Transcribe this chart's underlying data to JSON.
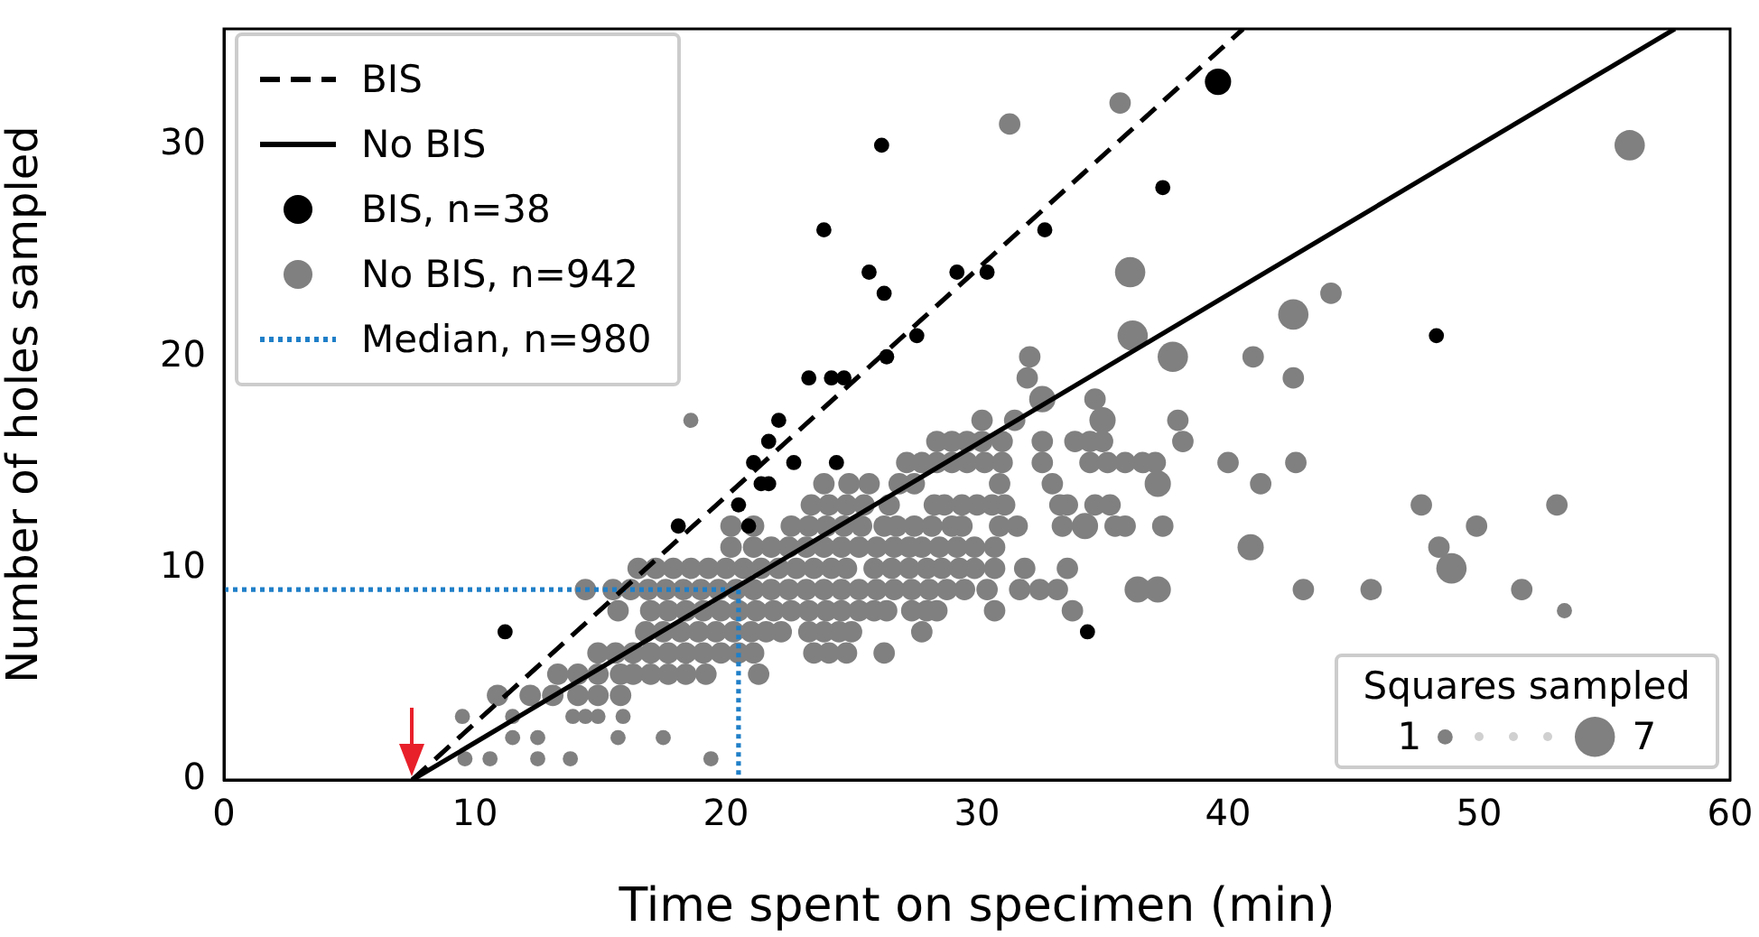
{
  "chart_data": {
    "type": "bubble",
    "xlabel": "Time spent on specimen (min)",
    "ylabel": "Number of holes sampled",
    "xlim": [
      0,
      60
    ],
    "ylim": [
      0,
      35.5
    ],
    "xticks": [
      0,
      10,
      20,
      30,
      40,
      50,
      60
    ],
    "yticks": [
      0,
      10,
      20,
      30
    ],
    "grid": false,
    "legend": "top left",
    "legend_title": "Squares sampled",
    "size_legend": [
      1,
      7
    ],
    "series": [
      {
        "name": "BIS",
        "type": "line",
        "color": "#000000",
        "line_style": "dashed",
        "marker": "none",
        "x": [
          7.5,
          40.6
        ],
        "values": [
          0,
          35.5
        ]
      },
      {
        "name": "No BIS",
        "type": "line",
        "color": "#000000",
        "line_style": "solid",
        "marker": "none",
        "x": [
          7.5,
          57.8
        ],
        "values": [
          0,
          35.5
        ]
      },
      {
        "name": "BIS, n=38",
        "type": "bubble",
        "color": "#000000",
        "marker": "circle",
        "x": [
          11.2,
          18.1,
          20.5,
          20.9,
          21.4,
          21.7,
          21.1,
          21.7,
          22.1,
          22.7,
          23.3,
          24.2,
          24.7,
          24.4,
          26.4,
          27.6,
          23.9,
          25.7,
          26.3,
          26.2,
          29.2,
          30.4,
          32.7,
          37.4,
          39.6,
          34.4,
          48.3
        ],
        "values": [
          7,
          12,
          13,
          12,
          14,
          14,
          15,
          16,
          17,
          15,
          19,
          19,
          19,
          15,
          20,
          21,
          26,
          24,
          23,
          30,
          24,
          24,
          26,
          28,
          33,
          7,
          21
        ],
        "sizes": [
          1,
          1,
          1,
          1,
          1,
          1,
          1,
          1,
          1,
          1,
          1,
          1,
          1,
          1,
          1,
          1,
          1,
          1,
          1,
          1,
          1,
          1,
          1,
          1,
          3,
          1,
          1
        ]
      },
      {
        "name": "No BIS, n=942",
        "type": "bubble",
        "color": "#808080",
        "marker": "circle",
        "x": [
          9.6,
          10.6,
          12.5,
          13.8,
          19.4,
          11.5,
          12.5,
          15.7,
          17.5,
          9.5,
          11.5,
          13.9,
          14.4,
          14.9,
          15.9,
          10.9,
          12.2,
          13.1,
          14.1,
          14.9,
          15.8,
          13.3,
          14.1,
          14.9,
          15.8,
          16.3,
          17.0,
          17.7,
          18.4,
          19.2,
          21.3,
          14.9,
          15.6,
          16.3,
          17.0,
          17.7,
          18.4,
          19.1,
          19.8,
          20.5,
          21.1,
          23.5,
          24.1,
          24.8,
          26.3,
          16.8,
          17.5,
          18.2,
          18.9,
          19.6,
          20.3,
          21.0,
          21.6,
          22.2,
          23.3,
          23.9,
          24.5,
          25.0,
          27.8,
          15.7,
          17.0,
          17.7,
          18.4,
          19.1,
          19.8,
          20.5,
          21.2,
          21.9,
          22.6,
          23.3,
          24.0,
          24.6,
          25.3,
          25.9,
          26.4,
          27.4,
          28.0,
          28.4,
          30.7,
          33.8,
          53.4,
          14.4,
          15.5,
          16.2,
          16.9,
          17.6,
          18.3,
          19.0,
          19.7,
          20.4,
          21.1,
          21.8,
          22.5,
          23.2,
          23.9,
          24.6,
          25.3,
          26.0,
          26.7,
          27.4,
          28.1,
          28.8,
          29.5,
          30.4,
          31.7,
          32.5,
          33.2,
          36.4,
          37.2,
          43.0,
          45.7,
          51.7,
          16.5,
          17.2,
          17.9,
          18.6,
          19.3,
          20.0,
          20.7,
          21.4,
          22.1,
          22.8,
          23.5,
          24.2,
          24.8,
          25.9,
          26.6,
          27.3,
          28.0,
          28.6,
          29.3,
          29.9,
          30.7,
          31.9,
          33.6,
          48.9,
          20.2,
          21.1,
          21.8,
          22.5,
          23.2,
          23.9,
          24.6,
          25.3,
          26.0,
          26.7,
          27.3,
          27.8,
          28.5,
          29.2,
          29.9,
          30.7,
          40.9,
          48.4,
          20.2,
          21.1,
          22.6,
          23.3,
          24.0,
          24.7,
          25.4,
          26.3,
          26.8,
          27.5,
          28.2,
          29.0,
          29.4,
          30.9,
          31.6,
          33.4,
          34.3,
          35.5,
          35.9,
          37.4,
          49.9,
          23.4,
          24.1,
          24.8,
          25.5,
          26.5,
          28.3,
          28.7,
          29.4,
          30.0,
          30.6,
          31.1,
          33.3,
          33.6,
          34.7,
          35.3,
          47.7,
          53.1,
          23.9,
          24.9,
          25.7,
          26.9,
          27.5,
          30.9,
          33.0,
          37.2,
          41.3,
          27.2,
          27.8,
          28.4,
          29.0,
          29.6,
          30.3,
          31.0,
          32.6,
          34.5,
          35.2,
          35.9,
          36.6,
          37.1,
          40.0,
          42.7,
          28.4,
          29.0,
          29.6,
          30.2,
          31.0,
          32.6,
          33.9,
          34.5,
          35.0,
          38.2,
          18.6,
          30.2,
          31.5,
          35.0,
          38.0,
          32.6,
          34.7,
          32.0,
          42.6,
          32.1,
          37.8,
          41.0,
          36.2,
          42.6,
          44.1,
          36.1,
          56.0,
          31.3,
          35.7
        ],
        "values": [
          1,
          1,
          1,
          1,
          1,
          2,
          2,
          2,
          2,
          3,
          3,
          3,
          3,
          3,
          3,
          4,
          4,
          4,
          4,
          4,
          4,
          5,
          5,
          5,
          5,
          5,
          5,
          5,
          5,
          5,
          5,
          6,
          6,
          6,
          6,
          6,
          6,
          6,
          6,
          6,
          6,
          6,
          6,
          6,
          6,
          7,
          7,
          7,
          7,
          7,
          7,
          7,
          7,
          7,
          7,
          7,
          7,
          7,
          7,
          8,
          8,
          8,
          8,
          8,
          8,
          8,
          8,
          8,
          8,
          8,
          8,
          8,
          8,
          8,
          8,
          8,
          8,
          8,
          8,
          8,
          8,
          9,
          9,
          9,
          9,
          9,
          9,
          9,
          9,
          9,
          9,
          9,
          9,
          9,
          9,
          9,
          9,
          9,
          9,
          9,
          9,
          9,
          9,
          9,
          9,
          9,
          9,
          9,
          9,
          9,
          9,
          9,
          10,
          10,
          10,
          10,
          10,
          10,
          10,
          10,
          10,
          10,
          10,
          10,
          10,
          10,
          10,
          10,
          10,
          10,
          10,
          10,
          10,
          10,
          10,
          10,
          11,
          11,
          11,
          11,
          11,
          11,
          11,
          11,
          11,
          11,
          11,
          11,
          11,
          11,
          11,
          11,
          11,
          11,
          12,
          12,
          12,
          12,
          12,
          12,
          12,
          12,
          12,
          12,
          12,
          12,
          12,
          12,
          12,
          12,
          12,
          12,
          12,
          12,
          12,
          13,
          13,
          13,
          13,
          13,
          13,
          13,
          13,
          13,
          13,
          13,
          13,
          13,
          13,
          13,
          13,
          13,
          14,
          14,
          14,
          14,
          14,
          14,
          14,
          14,
          14,
          15,
          15,
          15,
          15,
          15,
          15,
          15,
          15,
          15,
          15,
          15,
          15,
          15,
          15,
          15,
          16,
          16,
          16,
          16,
          16,
          16,
          16,
          16,
          16,
          16,
          17,
          17,
          17,
          17,
          17,
          18,
          18,
          19,
          19,
          20,
          20,
          20,
          21,
          22,
          23,
          24,
          30,
          31,
          32
        ],
        "sizes": [
          1,
          1,
          1,
          1,
          1,
          1,
          1,
          1,
          1,
          1,
          1,
          1,
          1,
          1,
          1,
          2,
          2,
          2,
          2,
          2,
          2,
          2,
          2,
          2,
          2,
          2,
          2,
          2,
          2,
          2,
          2,
          2,
          2,
          2,
          2,
          2,
          2,
          2,
          2,
          2,
          2,
          2,
          2,
          2,
          2,
          2,
          2,
          2,
          2,
          2,
          2,
          2,
          2,
          2,
          2,
          2,
          2,
          2,
          2,
          2,
          2,
          2,
          2,
          2,
          2,
          2,
          2,
          2,
          2,
          2,
          2,
          2,
          2,
          2,
          2,
          2,
          2,
          2,
          2,
          2,
          1,
          2,
          2,
          2,
          2,
          2,
          2,
          2,
          2,
          2,
          2,
          2,
          2,
          2,
          2,
          2,
          2,
          2,
          2,
          2,
          2,
          2,
          2,
          2,
          2,
          2,
          2,
          3,
          3,
          2,
          2,
          2,
          2,
          2,
          2,
          2,
          2,
          2,
          2,
          2,
          2,
          2,
          2,
          2,
          2,
          2,
          2,
          2,
          2,
          2,
          2,
          2,
          2,
          2,
          2,
          4,
          2,
          2,
          2,
          2,
          2,
          2,
          2,
          2,
          2,
          2,
          2,
          2,
          2,
          2,
          2,
          2,
          3,
          2,
          2,
          2,
          2,
          2,
          2,
          2,
          2,
          2,
          2,
          2,
          2,
          2,
          2,
          2,
          2,
          2,
          3,
          2,
          2,
          2,
          2,
          2,
          2,
          2,
          2,
          2,
          2,
          2,
          2,
          2,
          2,
          2,
          2,
          2,
          2,
          2,
          2,
          2,
          2,
          2,
          2,
          2,
          2,
          2,
          2,
          3,
          2,
          2,
          2,
          2,
          2,
          2,
          2,
          2,
          2,
          2,
          2,
          2,
          2,
          2,
          2,
          2,
          2,
          2,
          2,
          2,
          2,
          2,
          2,
          2,
          2,
          2,
          1,
          2,
          2,
          3,
          2,
          3,
          2,
          2,
          2,
          2,
          4,
          2,
          4,
          4,
          2,
          4,
          4,
          2,
          2
        ]
      },
      {
        "name": "Median, n=980",
        "type": "line",
        "color": "#1f7fc8",
        "line_style": "dotted",
        "marker": "none",
        "x": [
          0,
          20.5,
          20.5
        ],
        "values": [
          9,
          9,
          0
        ]
      }
    ]
  }
}
